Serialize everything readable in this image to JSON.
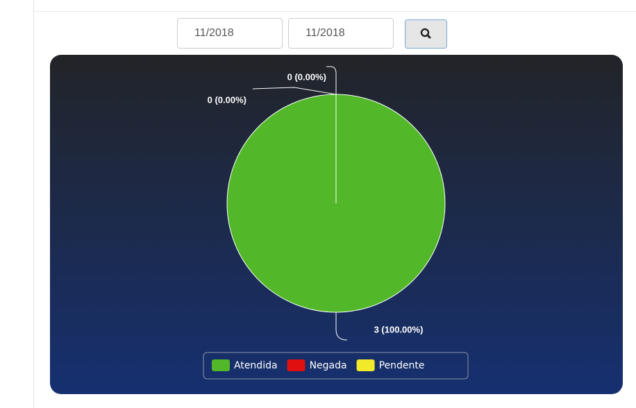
{
  "form": {
    "start": "11/2018",
    "end": "11/2018"
  },
  "chart_data": {
    "type": "pie",
    "categories": [
      "Atendida",
      "Negada",
      "Pendente"
    ],
    "values": [
      3,
      0,
      0
    ],
    "value_labels": [
      "3 (100.00%)",
      "0 (0.00%)",
      "0 (0.00%)"
    ],
    "colors": [
      "#52b82a",
      "#e01010",
      "#f2e92a"
    ],
    "legend": "bottom"
  }
}
